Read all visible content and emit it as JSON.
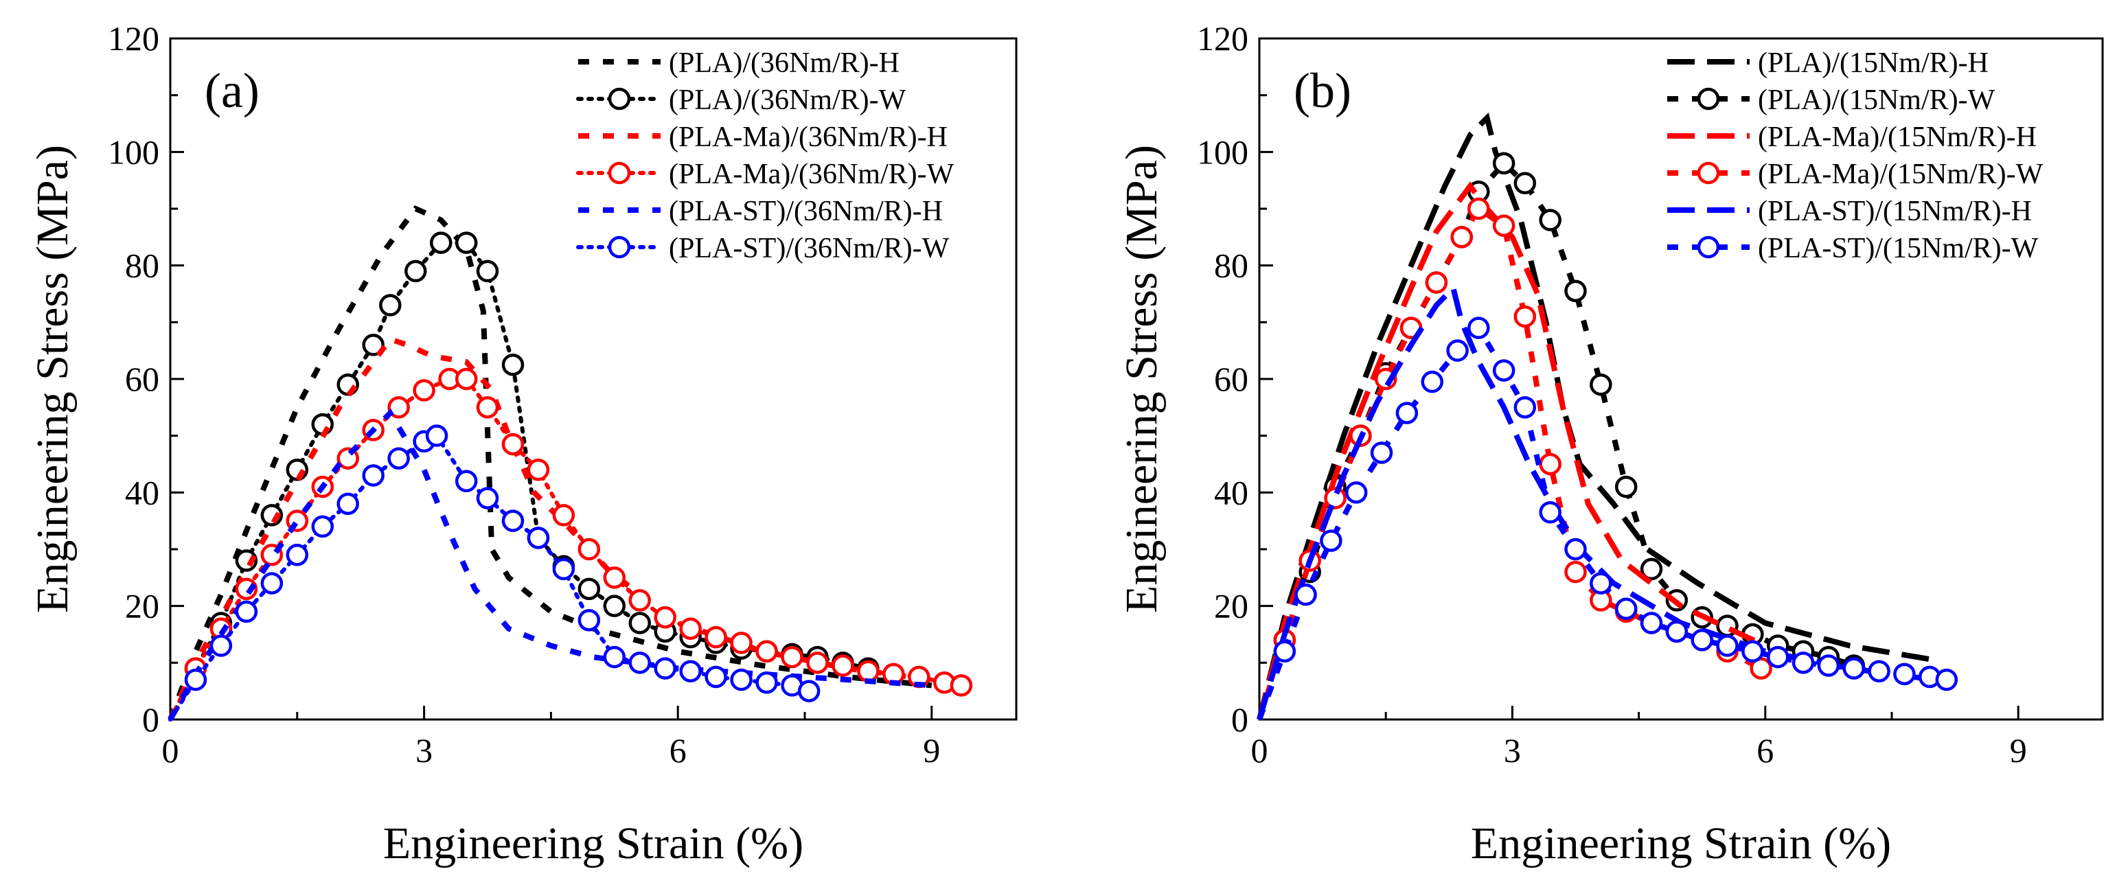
{
  "chart_data": [
    {
      "panel_label": "(a)",
      "type": "line",
      "xlabel": "Engineering Strain (%)",
      "ylabel": "Engineering Stress (MPa)",
      "xlim": [
        0,
        10
      ],
      "ylim": [
        0,
        120
      ],
      "xticks": [
        0,
        3,
        6,
        9
      ],
      "yticks": [
        0,
        20,
        40,
        60,
        80,
        100,
        120
      ],
      "legend_position": "top-right",
      "series": [
        {
          "name": "(PLA)/(36Nm/R)-H",
          "color": "#000000",
          "dash": "short",
          "marker": "none",
          "x": [
            0,
            0.3,
            0.6,
            1.0,
            1.5,
            2.0,
            2.5,
            2.9,
            3.2,
            3.5,
            3.7,
            3.8,
            4.0,
            4.5,
            5.0,
            6.0,
            7.0,
            8.0,
            9.0
          ],
          "y": [
            0,
            12,
            22,
            37,
            55,
            69,
            82,
            90,
            88,
            83,
            72,
            30,
            25,
            19,
            16,
            12,
            9.5,
            7.5,
            6
          ]
        },
        {
          "name": "(PLA)/(36Nm/R)-W",
          "color": "#000000",
          "dash": "dot",
          "marker": "circle",
          "x": [
            0,
            0.3,
            0.6,
            0.9,
            1.2,
            1.5,
            1.8,
            2.1,
            2.4,
            2.6,
            2.9,
            3.2,
            3.5,
            3.75,
            4.05,
            4.35,
            4.65,
            4.95,
            5.25,
            5.55,
            5.85,
            6.15,
            6.45,
            6.75,
            7.05,
            7.35,
            7.65,
            7.95,
            8.25
          ],
          "y": [
            0,
            9,
            17,
            28,
            36,
            44,
            52,
            59,
            66,
            73,
            79,
            84,
            84,
            79,
            62.5,
            32,
            27,
            23,
            20,
            17,
            15.5,
            14.5,
            13.5,
            12.5,
            12,
            11.5,
            11,
            10,
            9
          ]
        },
        {
          "name": "(PLA-Ma)/(36Nm/R)-H",
          "color": "#ff0000",
          "dash": "short",
          "marker": "none",
          "x": [
            0,
            0.3,
            0.6,
            1.0,
            1.5,
            2.0,
            2.4,
            2.6,
            2.8,
            3.1,
            3.5,
            3.8,
            4.0,
            4.3,
            4.7,
            5.2,
            6.0,
            7.0,
            8.0,
            9.0
          ],
          "y": [
            0,
            10,
            18,
            29,
            42,
            55,
            63,
            67,
            66,
            64,
            63,
            58,
            50,
            40,
            34,
            26,
            17,
            12,
            9,
            7
          ]
        },
        {
          "name": "(PLA-Ma)/(36Nm/R)-W",
          "color": "#ff0000",
          "dash": "dot",
          "marker": "circle",
          "x": [
            0,
            0.3,
            0.6,
            0.9,
            1.2,
            1.5,
            1.8,
            2.1,
            2.4,
            2.7,
            3.0,
            3.3,
            3.5,
            3.75,
            4.05,
            4.35,
            4.65,
            4.95,
            5.25,
            5.55,
            5.85,
            6.15,
            6.45,
            6.75,
            7.05,
            7.35,
            7.65,
            7.95,
            8.25,
            8.55,
            8.85,
            9.15,
            9.35
          ],
          "y": [
            0,
            9,
            16,
            23,
            29,
            35,
            41,
            46,
            51,
            55,
            58,
            60,
            60,
            55,
            48.5,
            44,
            36,
            30,
            25,
            21,
            18,
            16,
            14.5,
            13.5,
            12,
            11,
            10,
            9.5,
            8.5,
            8,
            7.5,
            6.5,
            6
          ]
        },
        {
          "name": "(PLA-ST)/(36Nm/R)-H",
          "color": "#0000ff",
          "dash": "short",
          "marker": "none",
          "x": [
            0,
            0.3,
            0.6,
            1.0,
            1.5,
            2.0,
            2.4,
            2.6,
            2.8,
            3.0,
            3.3,
            3.6,
            4.0,
            4.5,
            5.0,
            6.0,
            7.0,
            8.0,
            9.0
          ],
          "y": [
            0,
            8,
            15,
            24,
            35,
            45,
            51,
            54,
            49,
            44,
            33,
            23,
            16,
            13,
            11,
            9,
            8,
            7,
            6
          ]
        },
        {
          "name": "(PLA-ST)/(36Nm/R)-W",
          "color": "#0000ff",
          "dash": "dot",
          "marker": "circle",
          "x": [
            0,
            0.3,
            0.6,
            0.9,
            1.2,
            1.5,
            1.8,
            2.1,
            2.4,
            2.7,
            3.0,
            3.15,
            3.5,
            3.75,
            4.05,
            4.35,
            4.65,
            4.95,
            5.25,
            5.55,
            5.85,
            6.15,
            6.45,
            6.75,
            7.05,
            7.35,
            7.55
          ],
          "y": [
            0,
            7,
            13,
            19,
            24,
            29,
            34,
            38,
            43,
            46,
            49,
            50,
            42,
            39,
            35,
            32,
            26.5,
            17.5,
            11,
            10,
            9,
            8.5,
            7.5,
            7,
            6.5,
            6,
            5
          ]
        }
      ]
    },
    {
      "panel_label": "(b)",
      "type": "line",
      "xlabel": "Engineering Strain (%)",
      "ylabel": "Engineering Stress (MPa)",
      "xlim": [
        0,
        10
      ],
      "ylim": [
        0,
        120
      ],
      "xticks": [
        0,
        3,
        6,
        9
      ],
      "yticks": [
        0,
        20,
        40,
        60,
        80,
        100,
        120
      ],
      "legend_position": "top-right",
      "series": [
        {
          "name": "(PLA)/(15Nm/R)-H",
          "color": "#000000",
          "dash": "long",
          "marker": "none",
          "x": [
            0,
            0.3,
            0.6,
            1.0,
            1.4,
            1.8,
            2.2,
            2.5,
            2.7,
            2.8,
            3.1,
            3.4,
            3.6,
            3.8,
            4.2,
            4.6,
            5.2,
            6.0,
            7.0,
            8.0
          ],
          "y": [
            0,
            18,
            32,
            50,
            66,
            80,
            94,
            103,
            106,
            100,
            88,
            70,
            55,
            45,
            38,
            30,
            24,
            17,
            13,
            10.5
          ]
        },
        {
          "name": "(PLA)/(15Nm/R)-W",
          "color": "#000000",
          "dash": "short",
          "marker": "circle",
          "x": [
            0,
            0.3,
            0.6,
            0.9,
            1.2,
            1.5,
            1.8,
            2.1,
            2.4,
            2.6,
            2.9,
            3.15,
            3.45,
            3.75,
            4.05,
            4.35,
            4.65,
            4.95,
            5.25,
            5.55,
            5.85,
            6.15,
            6.45,
            6.75,
            7.05
          ],
          "y": [
            0,
            14,
            26,
            41,
            50,
            61,
            69,
            77,
            85,
            93,
            98,
            94.5,
            88,
            75.5,
            59,
            41,
            26.5,
            21,
            18,
            16.5,
            15,
            13,
            12,
            11,
            9.5
          ]
        },
        {
          "name": "(PLA-Ma)/(15Nm/R)-H",
          "color": "#ff0000",
          "dash": "long",
          "marker": "none",
          "x": [
            0,
            0.3,
            0.6,
            1.0,
            1.4,
            1.8,
            2.1,
            2.4,
            2.5,
            2.7,
            3.0,
            3.3,
            3.6,
            3.9,
            4.3,
            5.0,
            6.0
          ],
          "y": [
            0,
            17,
            30,
            47,
            62,
            76,
            86,
            92,
            94,
            90,
            85,
            75,
            55,
            38,
            28,
            20,
            13
          ]
        },
        {
          "name": "(PLA-Ma)/(15Nm/R)-W",
          "color": "#ff0000",
          "dash": "short",
          "marker": "circle",
          "x": [
            0,
            0.3,
            0.6,
            0.9,
            1.2,
            1.5,
            1.8,
            2.1,
            2.4,
            2.6,
            2.9,
            3.15,
            3.45,
            3.75,
            4.05,
            4.35,
            4.65,
            4.95,
            5.25,
            5.55,
            5.95
          ],
          "y": [
            0,
            14,
            28,
            39,
            50,
            60,
            69,
            77,
            85,
            90,
            87,
            71,
            45,
            26,
            21,
            19,
            17,
            15.5,
            14,
            12,
            9
          ]
        },
        {
          "name": "(PLA-ST)/(15Nm/R)-H",
          "color": "#0000ff",
          "dash": "long",
          "marker": "none",
          "x": [
            0,
            0.3,
            0.6,
            1.0,
            1.4,
            1.8,
            2.1,
            2.3,
            2.4,
            2.6,
            2.9,
            3.2,
            3.5,
            3.8,
            4.2,
            5.0,
            6.0,
            7.0,
            8.0
          ],
          "y": [
            0,
            15,
            28,
            43,
            56,
            66,
            73,
            76,
            70,
            63,
            55,
            45,
            37,
            30,
            24,
            17,
            12,
            9,
            7
          ]
        },
        {
          "name": "(PLA-ST)/(15Nm/R)-W",
          "color": "#0000ff",
          "dash": "short",
          "marker": "circle",
          "x": [
            0,
            0.3,
            0.55,
            0.85,
            1.15,
            1.45,
            1.75,
            2.05,
            2.35,
            2.6,
            2.9,
            3.15,
            3.45,
            3.75,
            4.05,
            4.35,
            4.65,
            4.95,
            5.25,
            5.55,
            5.85,
            6.15,
            6.45,
            6.75,
            7.05,
            7.35,
            7.65,
            7.95,
            8.15
          ],
          "y": [
            0,
            12,
            22,
            31.5,
            40,
            47,
            54,
            59.5,
            65,
            69,
            61.5,
            55,
            36.5,
            30,
            24,
            19.5,
            17,
            15.5,
            14,
            13,
            12,
            11,
            10,
            9.5,
            9,
            8.5,
            8,
            7.5,
            7
          ]
        }
      ]
    }
  ]
}
